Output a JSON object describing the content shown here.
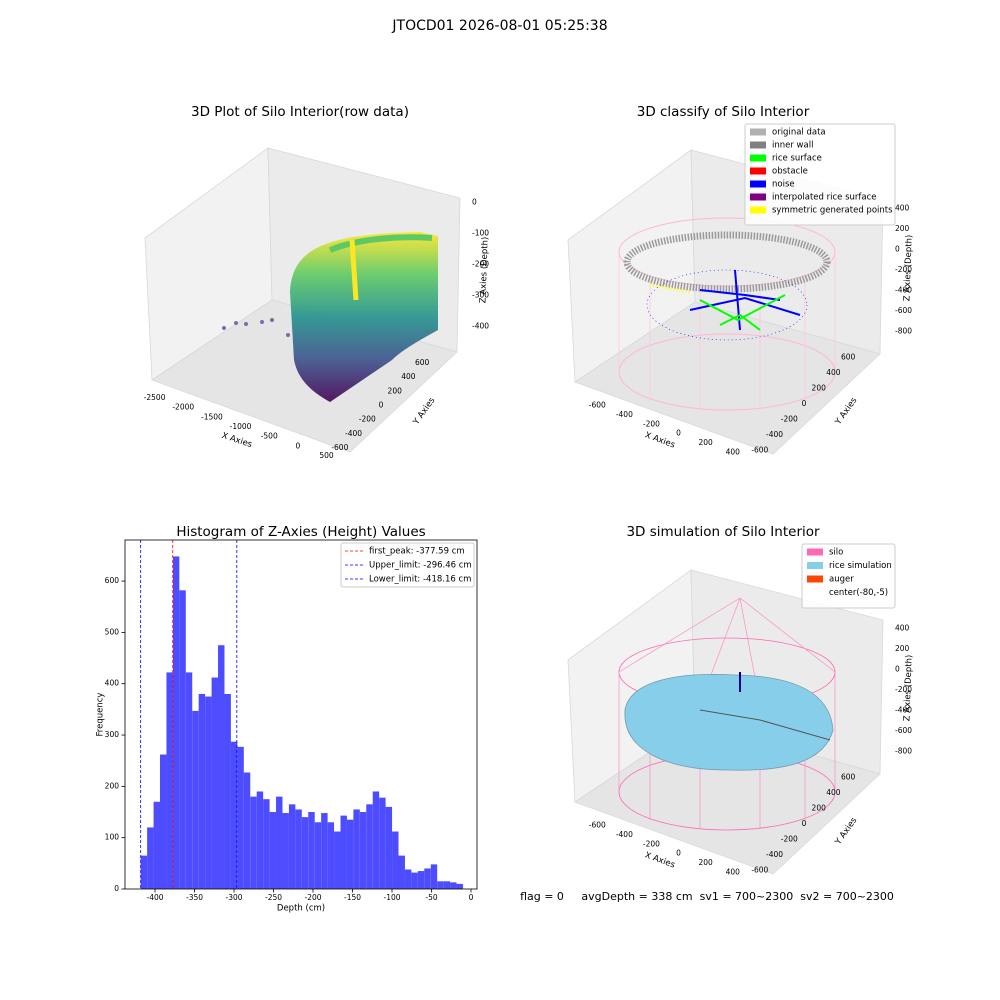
{
  "title": "JTOCD01 2026-08-01 05:25:38",
  "footer": "flag = 0     avgDepth = 338 cm  sv1 = 700~2300  sv2 = 700~2300",
  "chart_data": [
    {
      "type": "scatter3d",
      "title": "3D Plot of Silo Interior(row data)",
      "xlabel": "X Axies",
      "ylabel": "Y Axies",
      "zlabel": "Z Axies (Depth)",
      "xlim": [
        -2650,
        700
      ],
      "xticks": [
        -2500,
        -2000,
        -1500,
        -1000,
        -500,
        0,
        500
      ],
      "ylim": [
        -700,
        700
      ],
      "yticks": [
        -600,
        -400,
        -200,
        0,
        200,
        400,
        600
      ],
      "zlim": [
        -460,
        30
      ],
      "zticks": [
        0,
        -100,
        -200,
        -300,
        -400
      ]
    },
    {
      "type": "scatter3d",
      "title": "3D classify of Silo Interior",
      "xlabel": "X Axies",
      "ylabel": "Y Axies",
      "zlabel": "Z Axies (Depth)",
      "xlim": [
        -720,
        520
      ],
      "xticks": [
        -600,
        -400,
        -200,
        0,
        200,
        400
      ],
      "ylim": [
        -720,
        720
      ],
      "yticks": [
        -600,
        -400,
        -200,
        0,
        200,
        400,
        600
      ],
      "zlim": [
        -900,
        500
      ],
      "zticks": [
        400,
        200,
        0,
        -200,
        -400,
        -600,
        -800
      ],
      "legend_position": "upper right",
      "legend": [
        {
          "name": "original data",
          "color": "#b0b0b0"
        },
        {
          "name": "inner wall",
          "color": "#808080"
        },
        {
          "name": "rice surface",
          "color": "#00ff00"
        },
        {
          "name": "obstacle",
          "color": "#ff0000"
        },
        {
          "name": "noise",
          "color": "#0000ff"
        },
        {
          "name": "interpolated rice surface",
          "color": "#800080"
        },
        {
          "name": "symmetric generated points",
          "color": "#ffff00"
        }
      ]
    },
    {
      "type": "histogram",
      "title": "Histogram of Z-Axies (Height) Values",
      "xlabel": "Depth (cm)",
      "ylabel": "Frequency",
      "color": "#4d4dff",
      "bins": [
        -418.16,
        -410.0,
        -401.84,
        -393.68,
        -385.52,
        -377.36,
        -369.2,
        -361.04,
        -352.88,
        -344.72,
        -336.56,
        -328.4,
        -320.24,
        -312.08,
        -303.92,
        -295.76,
        -287.6,
        -279.44,
        -271.28,
        -263.12,
        -254.96,
        -246.8,
        -238.64,
        -230.48,
        -222.32,
        -214.16,
        -206.0,
        -197.84,
        -189.68,
        -181.52,
        -173.36,
        -165.2,
        -157.04,
        -148.88,
        -140.72,
        -132.56,
        -124.4,
        -116.24,
        -108.08,
        -99.92,
        -91.76,
        -83.6,
        -75.44,
        -67.28,
        -59.12,
        -50.96,
        -42.8,
        -34.64,
        -26.48,
        -18.32,
        -10.16
      ],
      "counts": [
        65,
        120,
        170,
        262,
        422,
        648,
        582,
        422,
        347,
        380,
        375,
        412,
        475,
        380,
        287,
        277,
        227,
        180,
        190,
        175,
        150,
        180,
        148,
        165,
        155,
        140,
        150,
        130,
        148,
        130,
        112,
        143,
        135,
        155,
        150,
        165,
        190,
        178,
        160,
        112,
        65,
        38,
        32,
        35,
        40,
        48,
        15,
        15,
        13,
        10
      ],
      "xlim": [
        -438,
        7.6
      ],
      "xticks": [
        -400,
        -350,
        -300,
        -250,
        -200,
        -150,
        -100,
        -50,
        0
      ],
      "ylim": [
        0,
        680
      ],
      "yticks": [
        0,
        100,
        200,
        300,
        400,
        500,
        600
      ],
      "legend_position": "upper right",
      "vlines": [
        {
          "name": "first_peak: -377.59 cm",
          "value": -377.59,
          "color": "#ff0000"
        },
        {
          "name": "Upper_limit: -296.46 cm",
          "value": -296.46,
          "color": "#0000ff"
        },
        {
          "name": "Lower_limit: -418.16 cm",
          "value": -418.16,
          "color": "#0000ff"
        }
      ]
    },
    {
      "type": "surface3d",
      "title": "3D simulation of Silo Interior",
      "xlabel": "X Axies",
      "ylabel": "Y Axies",
      "zlabel": "Z Axies (Depth)",
      "xlim": [
        -720,
        520
      ],
      "xticks": [
        -600,
        -400,
        -200,
        0,
        200,
        400
      ],
      "ylim": [
        -720,
        720
      ],
      "yticks": [
        -600,
        -400,
        -200,
        0,
        200,
        400,
        600
      ],
      "zlim": [
        -900,
        500
      ],
      "zticks": [
        400,
        200,
        0,
        -200,
        -400,
        -600,
        -800
      ],
      "legend_position": "upper right",
      "legend": [
        {
          "name": "silo",
          "color": "#ff69b4"
        },
        {
          "name": "rice simulation",
          "color": "#87ceeb"
        },
        {
          "name": "auger",
          "color": "#ff4500"
        },
        {
          "name": "center(-80,-5)",
          "color": "#ffffff"
        }
      ]
    }
  ]
}
